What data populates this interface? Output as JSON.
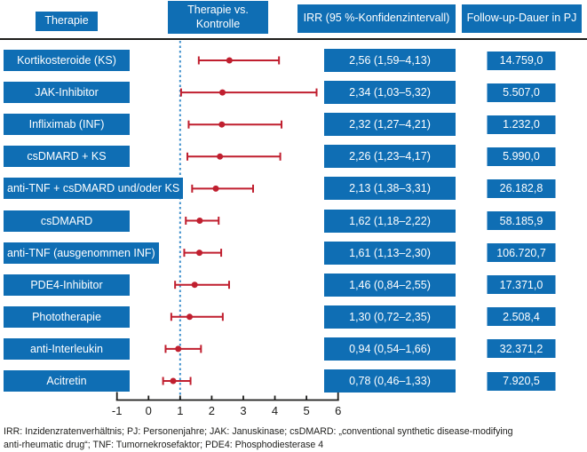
{
  "header": {
    "therapie": "Therapie",
    "vs_line1": "Therapie vs.",
    "vs_line2": "Kontrolle",
    "irr": "IRR (95 %-Konfidenzintervall)",
    "followup": "Follow-up-Dauer in PJ"
  },
  "footnote": {
    "line1": "IRR: Inzidenzratenverhältnis; PJ: Personenjahre; JAK: Januskinase; csDMARD: „conventional synthetic disease-modifying",
    "line2": "anti-rheumatic drug“; TNF: Tumornekrosefaktor; PDE4: Phosphodiesterase 4"
  },
  "colors": {
    "box_blue": "#0f6eb4",
    "marker_red": "#c01f2f",
    "ref_line_blue": "#4191cc",
    "axis_black": "#1d1d1b"
  },
  "chart_data": {
    "type": "scatter",
    "subtype": "forest-plot",
    "xlabel": "",
    "ylabel": "",
    "xlim": [
      -1,
      6
    ],
    "x_ticks": [
      -1,
      0,
      1,
      2,
      3,
      4,
      5,
      6
    ],
    "reference_line_x": 1,
    "grid": false,
    "rows": [
      {
        "label": "Kortikosteroide (KS)",
        "irr": 2.56,
        "ci_low": 1.59,
        "ci_high": 4.13,
        "irr_text": "2,56 (1,59–4,13)",
        "followup_text": "14.759,0"
      },
      {
        "label": "JAK-Inhibitor",
        "irr": 2.34,
        "ci_low": 1.03,
        "ci_high": 5.32,
        "irr_text": "2,34 (1,03–5,32)",
        "followup_text": "5.507,0"
      },
      {
        "label": "Infliximab (INF)",
        "irr": 2.32,
        "ci_low": 1.27,
        "ci_high": 4.21,
        "irr_text": "2,32 (1,27–4,21)",
        "followup_text": "1.232,0"
      },
      {
        "label": "csDMARD + KS",
        "irr": 2.26,
        "ci_low": 1.23,
        "ci_high": 4.17,
        "irr_text": "2,26 (1,23–4,17)",
        "followup_text": "5.990,0"
      },
      {
        "label": "anti-TNF + csDMARD und/oder KS",
        "irr": 2.13,
        "ci_low": 1.38,
        "ci_high": 3.31,
        "irr_text": "2,13 (1,38–3,31)",
        "followup_text": "26.182,8"
      },
      {
        "label": "csDMARD",
        "irr": 1.62,
        "ci_low": 1.18,
        "ci_high": 2.22,
        "irr_text": "1,62 (1,18–2,22)",
        "followup_text": "58.185,9"
      },
      {
        "label": "anti-TNF (ausgenommen INF)",
        "irr": 1.61,
        "ci_low": 1.13,
        "ci_high": 2.3,
        "irr_text": "1,61 (1,13–2,30)",
        "followup_text": "106.720,7"
      },
      {
        "label": "PDE4-Inhibitor",
        "irr": 1.46,
        "ci_low": 0.84,
        "ci_high": 2.55,
        "irr_text": "1,46 (0,84–2,55)",
        "followup_text": "17.371,0"
      },
      {
        "label": "Phototherapie",
        "irr": 1.3,
        "ci_low": 0.72,
        "ci_high": 2.35,
        "irr_text": "1,30 (0,72–2,35)",
        "followup_text": "2.508,4"
      },
      {
        "label": "anti-Interleukin",
        "irr": 0.94,
        "ci_low": 0.54,
        "ci_high": 1.66,
        "irr_text": "0,94 (0,54–1,66)",
        "followup_text": "32.371,2"
      },
      {
        "label": "Acitretin",
        "irr": 0.78,
        "ci_low": 0.46,
        "ci_high": 1.33,
        "irr_text": "0,78 (0,46–1,33)",
        "followup_text": "7.920,5"
      }
    ]
  }
}
